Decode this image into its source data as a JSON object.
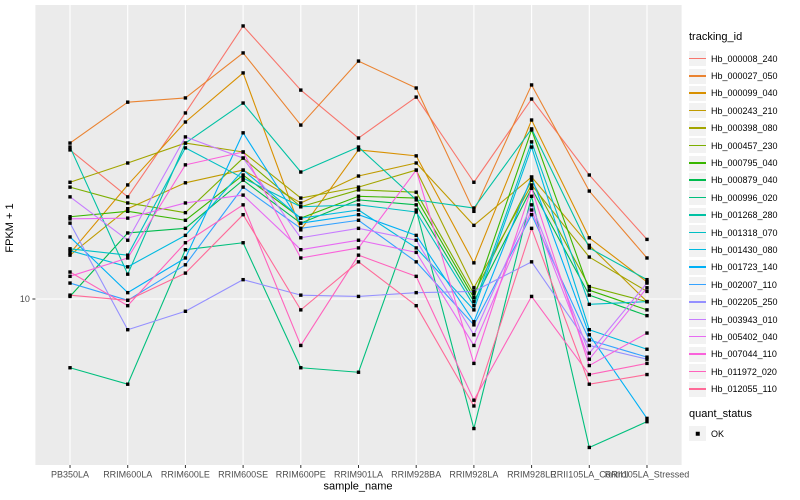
{
  "figure": {
    "y_axis": {
      "title": "FPKM + 1",
      "tick_labels": [
        "10"
      ]
    },
    "x_axis": {
      "title": "sample_name"
    },
    "legend": {
      "tracking_title": "tracking_id",
      "quant_title": "quant_status",
      "quant_items": [
        {
          "label": "OK"
        }
      ]
    },
    "colors": {
      "panel_bg": "#EBEBEB",
      "grid": "#FFFFFF",
      "point": "#000000",
      "legend_key_bg": "#F2F2F2",
      "tick_text": "#4D4D4D",
      "title_text": "#000000"
    }
  },
  "chart_data": {
    "type": "line",
    "title": "",
    "xlabel": "sample_name",
    "ylabel": "FPKM + 1",
    "y_scale": "log10",
    "y_breaks": [
      10
    ],
    "ylim": [
      2.8,
      95
    ],
    "grid": true,
    "legend_position": "right",
    "point_shape": "black-square",
    "quant_status_label": "OK",
    "categories": [
      "PB350LA",
      "RRIM600LA",
      "RRIM600LE",
      "RRIM600SE",
      "RRIM600PE",
      "RRIM901LA",
      "RRIM928BA",
      "RRIM928LA",
      "RRIM928LE",
      "RRII105LA_Control",
      "RRII105LA_Stressed"
    ],
    "series": [
      {
        "name": "Hb_000008_240",
        "color": "#F8766D",
        "values": [
          31.4,
          21.9,
          41.7,
          81.3,
          49.7,
          34.4,
          47.1,
          24.5,
          46.4,
          25.9,
          15.8
        ]
      },
      {
        "name": "Hb_000027_050",
        "color": "#EA8331",
        "values": [
          33.1,
          45.3,
          46.8,
          66.1,
          38.0,
          62.1,
          50.5,
          19.6,
          51.7,
          22.9,
          13.7
        ]
      },
      {
        "name": "Hb_000099_040",
        "color": "#D89000",
        "values": [
          14.2,
          24.0,
          38.9,
          56.7,
          17.0,
          31.4,
          30.0,
          13.2,
          39.5,
          16.0,
          11.4
        ]
      },
      {
        "name": "Hb_000243_210",
        "color": "#C09B00",
        "values": [
          14.0,
          20.0,
          24.4,
          26.9,
          20.9,
          25.7,
          28.4,
          17.6,
          25.5,
          15.1,
          9.8
        ]
      },
      {
        "name": "Hb_000398_080",
        "color": "#A3A500",
        "values": [
          24.5,
          28.4,
          33.1,
          30.9,
          21.7,
          23.6,
          26.9,
          10.9,
          24.0,
          13.8,
          10.6
        ]
      },
      {
        "name": "Hb_000457_230",
        "color": "#7CAE00",
        "values": [
          23.6,
          20.9,
          19.4,
          29.5,
          20.3,
          23.1,
          22.7,
          10.4,
          24.9,
          11.0,
          9.8
        ]
      },
      {
        "name": "Hb_000795_040",
        "color": "#39B600",
        "values": [
          18.8,
          19.6,
          18.3,
          25.9,
          18.6,
          22.0,
          21.7,
          10.1,
          36.6,
          10.7,
          9.2
        ]
      },
      {
        "name": "Hb_000879_040",
        "color": "#00BB4E",
        "values": [
          10.2,
          16.6,
          17.2,
          24.9,
          17.9,
          21.4,
          20.6,
          9.8,
          23.4,
          10.3,
          8.8
        ]
      },
      {
        "name": "Hb_000996_020",
        "color": "#00BF7D",
        "values": [
          5.9,
          5.2,
          14.6,
          15.4,
          5.9,
          5.7,
          19.8,
          3.7,
          22.0,
          3.2,
          3.9
        ]
      },
      {
        "name": "Hb_001268_280",
        "color": "#00C1A3",
        "values": [
          32.1,
          12.1,
          33.1,
          45.0,
          26.5,
          32.1,
          21.4,
          20.1,
          36.9,
          14.8,
          11.6
        ]
      },
      {
        "name": "Hb_001318_070",
        "color": "#00BFC4",
        "values": [
          14.7,
          14.0,
          31.9,
          25.3,
          20.3,
          20.6,
          19.5,
          9.5,
          33.4,
          9.6,
          9.8
        ]
      },
      {
        "name": "Hb_001430_080",
        "color": "#00BAE0",
        "values": [
          14.5,
          12.8,
          16.3,
          26.9,
          18.6,
          19.8,
          14.8,
          9.2,
          32.1,
          7.9,
          6.8
        ]
      },
      {
        "name": "Hb_001723_140",
        "color": "#00B0F6",
        "values": [
          16.1,
          10.5,
          13.7,
          35.8,
          17.9,
          19.1,
          16.3,
          8.4,
          25.5,
          7.6,
          4.0
        ]
      },
      {
        "name": "Hb_002007_110",
        "color": "#35A2FF",
        "values": [
          11.3,
          9.9,
          13.0,
          23.6,
          17.2,
          18.3,
          13.3,
          8.2,
          19.1,
          7.3,
          6.4
        ]
      },
      {
        "name": "Hb_002205_250",
        "color": "#9590FF",
        "values": [
          17.9,
          7.9,
          9.1,
          11.6,
          10.3,
          10.2,
          10.5,
          10.6,
          13.3,
          7.0,
          6.3
        ]
      },
      {
        "name": "Hb_003943_010",
        "color": "#C77CFF",
        "values": [
          21.9,
          15.7,
          34.7,
          29.5,
          16.0,
          17.2,
          15.7,
          7.6,
          20.6,
          6.6,
          11.3
        ]
      },
      {
        "name": "Hb_005402_040",
        "color": "#E76BF3",
        "values": [
          18.5,
          18.6,
          20.9,
          22.2,
          14.6,
          15.7,
          14.3,
          7.0,
          19.8,
          6.3,
          10.9
        ]
      },
      {
        "name": "Hb_007044_110",
        "color": "#FA62DB",
        "values": [
          11.9,
          13.7,
          28.0,
          30.9,
          13.7,
          14.8,
          26.9,
          6.1,
          23.4,
          6.0,
          7.7
        ]
      },
      {
        "name": "Hb_011972_020",
        "color": "#FF62BC",
        "values": [
          12.3,
          9.5,
          15.4,
          20.6,
          7.0,
          14.0,
          11.9,
          4.6,
          10.2,
          5.6,
          6.1
        ]
      },
      {
        "name": "Hb_012055_110",
        "color": "#FF6A98",
        "values": [
          10.3,
          9.9,
          12.2,
          19.1,
          9.2,
          13.3,
          9.5,
          4.4,
          17.2,
          5.2,
          5.6
        ]
      }
    ]
  }
}
